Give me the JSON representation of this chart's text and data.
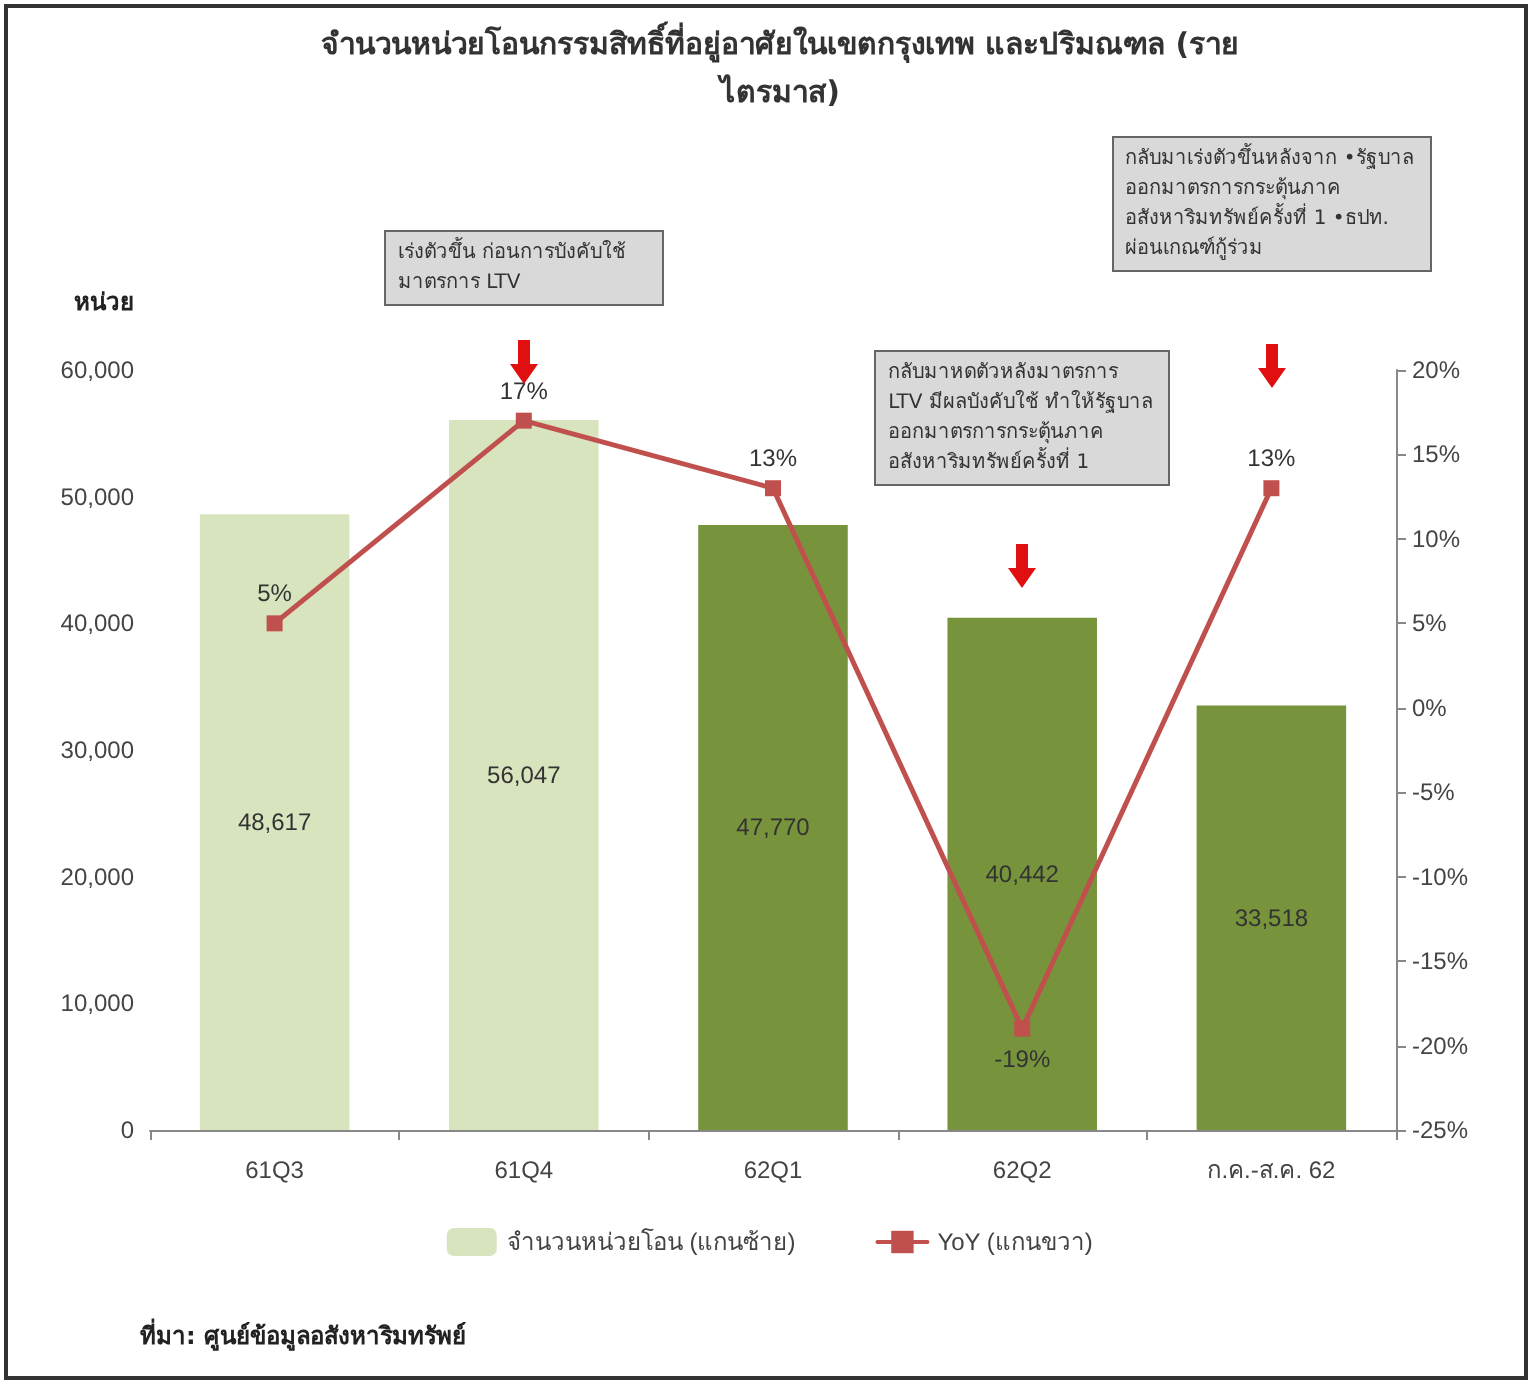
{
  "chart_data": {
    "type": "bar",
    "title": "จำนวนหน่วยโอนกรรมสิทธิ์ที่อยู่อาศัยในเขตกรุงเทพ และปริมณฑล (รายไตรมาส)",
    "ylabel": "หน่วย",
    "categories": [
      "61Q3",
      "61Q4",
      "62Q1",
      "62Q2",
      "ก.ค.-ส.ค. 62"
    ],
    "series": [
      {
        "name": "จำนวนหน่วยโอน (แกนซ้าย)",
        "colors": [
          "#d7e4bd",
          "#d7e4bd",
          "#77933c",
          "#77933c",
          "#77933c"
        ],
        "values": [
          48617,
          56047,
          47770,
          40442,
          33518
        ],
        "value_labels": [
          "48,617",
          "56,047",
          "47,770",
          "40,442",
          "33,518"
        ]
      },
      {
        "name": "YoY (แกนขวา)",
        "type": "line",
        "axis": "y2",
        "color": "#c0504d",
        "values": [
          5,
          17,
          13,
          -19,
          13
        ],
        "value_labels": [
          "5%",
          "17%",
          "13%",
          "-19%",
          "13%"
        ]
      }
    ],
    "ylim": [
      0,
      60000
    ],
    "yticks": [
      {
        "value": 0,
        "label": "0"
      },
      {
        "value": 10000,
        "label": "10,000"
      },
      {
        "value": 20000,
        "label": "20,000"
      },
      {
        "value": 30000,
        "label": "30,000"
      },
      {
        "value": 40000,
        "label": "40,000"
      },
      {
        "value": 50000,
        "label": "50,000"
      },
      {
        "value": 60000,
        "label": "60,000"
      }
    ],
    "y2lim": [
      -25,
      20
    ],
    "y2ticks": [
      {
        "value": -25,
        "label": "-25%"
      },
      {
        "value": -20,
        "label": "-20%"
      },
      {
        "value": -15,
        "label": "-15%"
      },
      {
        "value": -10,
        "label": "-10%"
      },
      {
        "value": -5,
        "label": "-5%"
      },
      {
        "value": 0,
        "label": "0%"
      },
      {
        "value": 5,
        "label": "5%"
      },
      {
        "value": 10,
        "label": "10%"
      },
      {
        "value": 15,
        "label": "15%"
      },
      {
        "value": 20,
        "label": "20%"
      }
    ],
    "annotations": [
      "เร่งตัวขึ้น ก่อนการบังคับใช้มาตรการ LTV",
      "กลับมาหดตัวหลังมาตรการ LTV มีผลบังคับใช้ ทำให้รัฐบาลออกมาตรการกระตุ้นภาคอสังหาริมทรัพย์ครั้งที่ 1",
      "กลับมาเร่งตัวขึ้นหลังจาก •รัฐบาลออกมาตรการกระตุ้นภาคอสังหาริมทรัพย์ครั้งที่ 1 •ธปท. ผ่อนเกณฑ์กู้ร่วม",
      "ที่มา: ศูนย์ข้อมูลอสังหาริมทรัพย์"
    ],
    "marker": "square",
    "line_style": "solid",
    "grid": false,
    "legend": "bottom"
  }
}
